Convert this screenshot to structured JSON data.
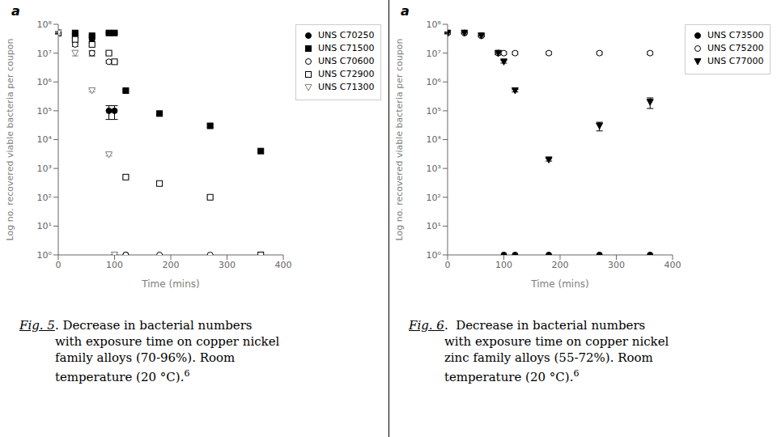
{
  "chart_data": [
    {
      "type": "scatter",
      "title": "a",
      "xlabel": "Time (mins)",
      "ylabel": "Log no. recovered viable bacteria per coupon",
      "xlim": [
        0,
        400
      ],
      "ylim": [
        1,
        100000000
      ],
      "xticks": [
        0,
        100,
        200,
        300,
        400
      ],
      "yticks": [
        {
          "value": 1,
          "label": "10⁰"
        },
        {
          "value": 10,
          "label": "10¹"
        },
        {
          "value": 100,
          "label": "10²"
        },
        {
          "value": 1000,
          "label": "10³"
        },
        {
          "value": 10000,
          "label": "10⁴"
        },
        {
          "value": 100000,
          "label": "10⁵"
        },
        {
          "value": 1000000,
          "label": "10⁶"
        },
        {
          "value": 10000000,
          "label": "10⁷"
        },
        {
          "value": 100000000,
          "label": "10⁸"
        }
      ],
      "log": "y",
      "grid": false,
      "legend": "right",
      "annotations": [
        "Fig. 5",
        ". Decrease in bacterial numbers\nwith exposure time on copper nickel\nfamily alloys (70-96%). Room\ntemperature (20 °C).",
        "6"
      ],
      "series": [
        {
          "name": "UNS C70250",
          "color": "black",
          "marker": "circle",
          "x": [
            0,
            30,
            60,
            90,
            100,
            120
          ],
          "values": [
            50000000.0,
            40000000.0,
            30000000.0,
            100000.0,
            100000.0,
            1
          ],
          "errors": [
            5000000.0,
            5000000.0,
            5000000.0,
            50000.0,
            50000.0,
            0
          ]
        },
        {
          "name": "UNS C71500",
          "color": "black",
          "marker": "square",
          "x": [
            0,
            30,
            60,
            90,
            100,
            120,
            180,
            270,
            360
          ],
          "values": [
            50000000.0,
            50000000.0,
            40000000.0,
            50000000.0,
            50000000.0,
            500000.0,
            80000.0,
            30000.0,
            4000.0
          ],
          "errors": [
            3000000.0,
            3000000.0,
            3000000.0,
            3000000.0,
            3000000.0,
            50000.0,
            5000.0,
            3000.0,
            400.0
          ]
        },
        {
          "name": "UNS C70600",
          "color": "black",
          "marker": "circle-open",
          "x": [
            0,
            30,
            60,
            90,
            100,
            120,
            180,
            270,
            360
          ],
          "values": [
            50000000.0,
            20000000.0,
            10000000.0,
            5000000.0,
            1,
            1,
            1,
            1,
            1
          ],
          "errors": [
            5000000.0,
            3000000.0,
            2000000.0,
            500000.0,
            0,
            0,
            0,
            0,
            0
          ]
        },
        {
          "name": "UNS C72900",
          "color": "black",
          "marker": "square-open",
          "x": [
            0,
            30,
            60,
            90,
            100,
            120,
            180,
            270,
            360
          ],
          "values": [
            50000000.0,
            30000000.0,
            20000000.0,
            10000000.0,
            5000000.0,
            500.0,
            300.0,
            100.0,
            1
          ],
          "errors": [
            3000000.0,
            3000000.0,
            2000000.0,
            1000000.0,
            500000.0,
            50.0,
            30.0,
            10.0,
            0
          ]
        },
        {
          "name": "UNS C71300",
          "color": "gray",
          "marker": "triangle-down-open",
          "x": [
            0,
            30,
            60,
            90,
            100
          ],
          "values": [
            50000000.0,
            10000000.0,
            500000.0,
            3000.0,
            1
          ],
          "errors": [
            5000000.0,
            2000000.0,
            50000.0,
            300.0,
            0
          ]
        }
      ]
    },
    {
      "type": "scatter",
      "title": "a",
      "xlabel": "Time (mins)",
      "ylabel": "Log no. recovered viable bacteria per coupon",
      "xlim": [
        0,
        400
      ],
      "ylim": [
        1,
        100000000
      ],
      "xticks": [
        0,
        100,
        200,
        300,
        400
      ],
      "yticks": [
        {
          "value": 1,
          "label": "10⁰"
        },
        {
          "value": 10,
          "label": "10¹"
        },
        {
          "value": 100,
          "label": "10²"
        },
        {
          "value": 1000,
          "label": "10³"
        },
        {
          "value": 10000,
          "label": "10⁴"
        },
        {
          "value": 100000,
          "label": "10⁵"
        },
        {
          "value": 1000000,
          "label": "10⁶"
        },
        {
          "value": 10000000,
          "label": "10⁷"
        },
        {
          "value": 100000000,
          "label": "10⁸"
        }
      ],
      "log": "y",
      "grid": false,
      "legend": "right",
      "annotations": [
        "Fig. 6",
        ".  Decrease in bacterial numbers\nwith exposure time on copper nickel\nzinc family alloys (55-72%). Room\ntemperature (20 °C).",
        "6"
      ],
      "series": [
        {
          "name": "UNS C73500",
          "color": "black",
          "marker": "circle",
          "x": [
            0,
            30,
            60,
            90,
            100,
            120,
            180,
            270,
            360
          ],
          "values": [
            50000000.0,
            50000000.0,
            40000000.0,
            10000000.0,
            1,
            1,
            1,
            1,
            1
          ],
          "errors": [
            3000000.0,
            3000000.0,
            3000000.0,
            1000000.0,
            0,
            0,
            0,
            0,
            0
          ]
        },
        {
          "name": "UNS C75200",
          "color": "black",
          "marker": "circle-open",
          "x": [
            0,
            30,
            60,
            90,
            100,
            120,
            180,
            270,
            360
          ],
          "values": [
            50000000.0,
            50000000.0,
            40000000.0,
            10000000.0,
            10000000.0,
            10000000.0,
            10000000.0,
            10000000.0,
            10000000.0
          ],
          "errors": [
            3000000.0,
            3000000.0,
            3000000.0,
            1000000.0,
            1000000.0,
            1000000.0,
            1000000.0,
            1000000.0,
            1000000.0
          ]
        },
        {
          "name": "UNS C77000",
          "color": "black",
          "marker": "triangle-down",
          "x": [
            0,
            30,
            60,
            90,
            100,
            120,
            180,
            270,
            360
          ],
          "values": [
            50000000.0,
            50000000.0,
            40000000.0,
            10000000.0,
            5000000.0,
            500000.0,
            2000.0,
            30000.0,
            200000.0
          ],
          "errors": [
            3000000.0,
            3000000.0,
            3000000.0,
            1000000.0,
            500000.0,
            50000.0,
            200.0,
            10000.0,
            80000.0
          ]
        }
      ]
    }
  ]
}
